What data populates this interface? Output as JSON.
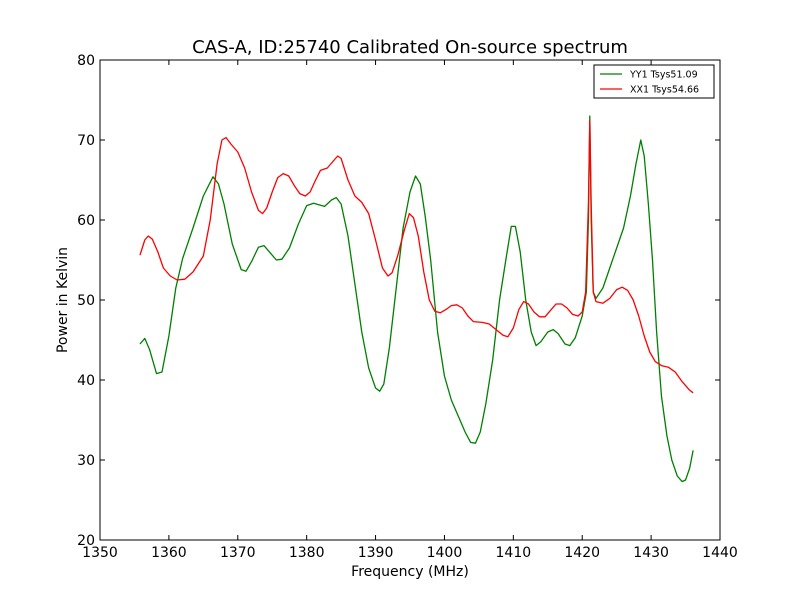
{
  "chart_data": {
    "type": "line",
    "title": "CAS-A, ID:25740 Calibrated On-source spectrum",
    "xlabel": "Frequency (MHz)",
    "ylabel": "Power in Kelvin",
    "xlim": [
      1350,
      1440
    ],
    "ylim": [
      20,
      80
    ],
    "xticks": [
      1350,
      1360,
      1370,
      1380,
      1390,
      1400,
      1410,
      1420,
      1430,
      1440
    ],
    "yticks": [
      20,
      30,
      40,
      50,
      60,
      70,
      80
    ],
    "grid": false,
    "legend_position": "top-right",
    "colors": {
      "YY1": "#008000",
      "XX1": "#ff0000"
    },
    "series": [
      {
        "name": "YY1 Tsys51.09",
        "color": "#008000",
        "points": [
          [
            1355.8,
            44.5
          ],
          [
            1356.5,
            45.2
          ],
          [
            1357.2,
            43.8
          ],
          [
            1358.2,
            40.8
          ],
          [
            1359.0,
            41.0
          ],
          [
            1360.0,
            45.5
          ],
          [
            1361.0,
            51.5
          ],
          [
            1362.0,
            55.2
          ],
          [
            1363.5,
            59.0
          ],
          [
            1365.0,
            63.0
          ],
          [
            1366.4,
            65.4
          ],
          [
            1367.2,
            64.5
          ],
          [
            1368.0,
            62.0
          ],
          [
            1369.2,
            57.0
          ],
          [
            1370.5,
            53.8
          ],
          [
            1371.2,
            53.6
          ],
          [
            1372.0,
            54.8
          ],
          [
            1373.0,
            56.6
          ],
          [
            1373.8,
            56.8
          ],
          [
            1374.8,
            55.8
          ],
          [
            1375.6,
            55.0
          ],
          [
            1376.4,
            55.1
          ],
          [
            1377.5,
            56.5
          ],
          [
            1378.8,
            59.5
          ],
          [
            1380.0,
            61.8
          ],
          [
            1381.0,
            62.1
          ],
          [
            1382.6,
            61.7
          ],
          [
            1383.6,
            62.5
          ],
          [
            1384.3,
            62.8
          ],
          [
            1385.0,
            62.0
          ],
          [
            1386.0,
            58.0
          ],
          [
            1387.0,
            52.0
          ],
          [
            1388.0,
            46.0
          ],
          [
            1389.0,
            41.5
          ],
          [
            1390.0,
            39.0
          ],
          [
            1390.6,
            38.6
          ],
          [
            1391.2,
            39.5
          ],
          [
            1392.0,
            44.0
          ],
          [
            1393.0,
            51.5
          ],
          [
            1394.0,
            59.0
          ],
          [
            1395.0,
            63.5
          ],
          [
            1395.8,
            65.5
          ],
          [
            1396.5,
            64.5
          ],
          [
            1397.2,
            60.5
          ],
          [
            1398.0,
            55.0
          ],
          [
            1399.0,
            46.0
          ],
          [
            1400.0,
            40.5
          ],
          [
            1401.0,
            37.5
          ],
          [
            1402.0,
            35.5
          ],
          [
            1403.0,
            33.5
          ],
          [
            1403.8,
            32.2
          ],
          [
            1404.5,
            32.1
          ],
          [
            1405.2,
            33.5
          ],
          [
            1406.0,
            37.0
          ],
          [
            1407.0,
            42.5
          ],
          [
            1408.0,
            50.0
          ],
          [
            1409.0,
            55.5
          ],
          [
            1409.7,
            59.2
          ],
          [
            1410.3,
            59.2
          ],
          [
            1411.0,
            56.0
          ],
          [
            1411.8,
            50.0
          ],
          [
            1412.6,
            46.0
          ],
          [
            1413.3,
            44.3
          ],
          [
            1414.0,
            44.8
          ],
          [
            1415.0,
            46.0
          ],
          [
            1415.8,
            46.3
          ],
          [
            1416.5,
            45.8
          ],
          [
            1417.5,
            44.5
          ],
          [
            1418.2,
            44.3
          ],
          [
            1419.0,
            45.3
          ],
          [
            1420.0,
            48.0
          ],
          [
            1420.6,
            51.0
          ],
          [
            1420.9,
            60.0
          ],
          [
            1421.1,
            73.0
          ],
          [
            1421.3,
            60.0
          ],
          [
            1421.6,
            51.0
          ],
          [
            1422.0,
            50.2
          ],
          [
            1423.0,
            51.5
          ],
          [
            1424.0,
            54.0
          ],
          [
            1425.0,
            56.5
          ],
          [
            1426.0,
            59.0
          ],
          [
            1427.0,
            63.0
          ],
          [
            1427.8,
            67.0
          ],
          [
            1428.5,
            70.0
          ],
          [
            1429.0,
            68.0
          ],
          [
            1429.6,
            62.0
          ],
          [
            1430.2,
            55.0
          ],
          [
            1430.8,
            46.0
          ],
          [
            1431.5,
            38.0
          ],
          [
            1432.3,
            33.0
          ],
          [
            1433.0,
            30.0
          ],
          [
            1433.8,
            28.0
          ],
          [
            1434.5,
            27.3
          ],
          [
            1435.0,
            27.5
          ],
          [
            1435.6,
            29.0
          ],
          [
            1436.1,
            31.2
          ]
        ]
      },
      {
        "name": "XX1 Tsys54.66",
        "color": "#ff0000",
        "points": [
          [
            1355.8,
            55.6
          ],
          [
            1356.5,
            57.5
          ],
          [
            1357.0,
            58.0
          ],
          [
            1357.6,
            57.6
          ],
          [
            1358.4,
            56.0
          ],
          [
            1359.2,
            54.0
          ],
          [
            1360.2,
            53.0
          ],
          [
            1361.2,
            52.5
          ],
          [
            1362.3,
            52.6
          ],
          [
            1363.5,
            53.5
          ],
          [
            1365.0,
            55.5
          ],
          [
            1366.0,
            60.0
          ],
          [
            1367.0,
            67.0
          ],
          [
            1367.7,
            70.0
          ],
          [
            1368.3,
            70.3
          ],
          [
            1369.0,
            69.5
          ],
          [
            1370.0,
            68.5
          ],
          [
            1371.0,
            66.5
          ],
          [
            1372.0,
            63.5
          ],
          [
            1373.0,
            61.2
          ],
          [
            1373.6,
            60.8
          ],
          [
            1374.2,
            61.5
          ],
          [
            1375.0,
            63.5
          ],
          [
            1375.8,
            65.3
          ],
          [
            1376.6,
            65.8
          ],
          [
            1377.4,
            65.5
          ],
          [
            1378.2,
            64.3
          ],
          [
            1379.0,
            63.3
          ],
          [
            1379.8,
            63.0
          ],
          [
            1380.5,
            63.5
          ],
          [
            1381.3,
            65.0
          ],
          [
            1382.0,
            66.2
          ],
          [
            1383.0,
            66.5
          ],
          [
            1384.0,
            67.5
          ],
          [
            1384.5,
            68.0
          ],
          [
            1385.0,
            67.7
          ],
          [
            1386.0,
            65.0
          ],
          [
            1387.0,
            63.0
          ],
          [
            1388.0,
            62.2
          ],
          [
            1389.0,
            60.8
          ],
          [
            1390.0,
            57.5
          ],
          [
            1391.0,
            54.0
          ],
          [
            1391.8,
            53.0
          ],
          [
            1392.4,
            53.4
          ],
          [
            1393.2,
            55.5
          ],
          [
            1394.2,
            58.8
          ],
          [
            1394.9,
            60.8
          ],
          [
            1395.5,
            60.3
          ],
          [
            1396.2,
            58.0
          ],
          [
            1397.0,
            53.5
          ],
          [
            1397.8,
            50.0
          ],
          [
            1398.6,
            48.6
          ],
          [
            1399.4,
            48.4
          ],
          [
            1400.2,
            48.8
          ],
          [
            1401.0,
            49.3
          ],
          [
            1401.8,
            49.4
          ],
          [
            1402.6,
            49.0
          ],
          [
            1403.4,
            48.0
          ],
          [
            1404.2,
            47.3
          ],
          [
            1405.5,
            47.2
          ],
          [
            1406.5,
            47.0
          ],
          [
            1407.5,
            46.3
          ],
          [
            1408.5,
            45.6
          ],
          [
            1409.2,
            45.4
          ],
          [
            1410.0,
            46.5
          ],
          [
            1410.8,
            48.8
          ],
          [
            1411.5,
            49.8
          ],
          [
            1412.2,
            49.5
          ],
          [
            1413.0,
            48.5
          ],
          [
            1413.8,
            47.9
          ],
          [
            1414.6,
            47.9
          ],
          [
            1415.5,
            48.8
          ],
          [
            1416.2,
            49.5
          ],
          [
            1417.0,
            49.5
          ],
          [
            1417.8,
            49.0
          ],
          [
            1418.6,
            48.2
          ],
          [
            1419.4,
            48.0
          ],
          [
            1420.0,
            48.5
          ],
          [
            1420.5,
            51.0
          ],
          [
            1420.9,
            62.0
          ],
          [
            1421.1,
            72.5
          ],
          [
            1421.3,
            62.0
          ],
          [
            1421.6,
            51.0
          ],
          [
            1422.0,
            49.8
          ],
          [
            1423.0,
            49.6
          ],
          [
            1424.0,
            50.2
          ],
          [
            1425.0,
            51.3
          ],
          [
            1425.8,
            51.6
          ],
          [
            1426.6,
            51.2
          ],
          [
            1427.4,
            50.0
          ],
          [
            1428.2,
            48.0
          ],
          [
            1429.0,
            45.5
          ],
          [
            1429.8,
            43.5
          ],
          [
            1430.6,
            42.3
          ],
          [
            1431.5,
            41.8
          ],
          [
            1432.5,
            41.6
          ],
          [
            1433.5,
            41.0
          ],
          [
            1434.5,
            39.8
          ],
          [
            1435.5,
            38.8
          ],
          [
            1436.1,
            38.4
          ]
        ]
      }
    ]
  }
}
